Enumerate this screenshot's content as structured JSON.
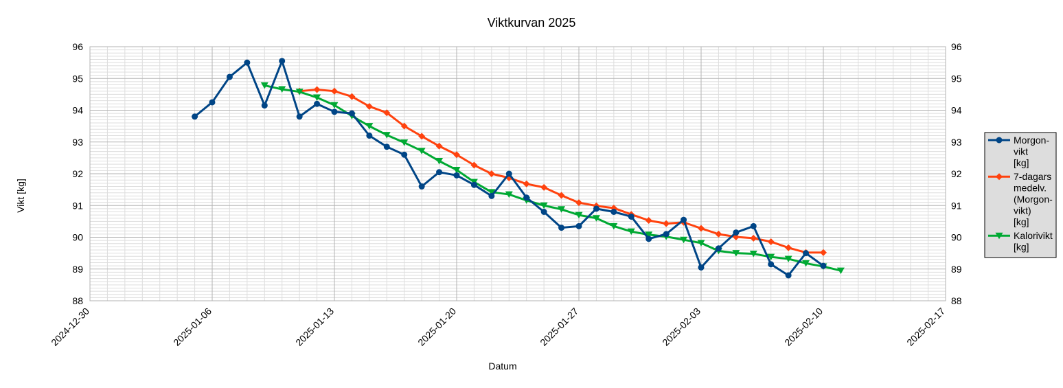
{
  "chart_data": {
    "type": "line",
    "title": "Viktkurvan 2025",
    "xlabel": "Datum",
    "ylabel": "Vikt [kg]",
    "xlim": [
      "2024-12-30",
      "2025-02-17"
    ],
    "ylim": [
      88,
      96
    ],
    "x_ticks": [
      "2024-12-30",
      "2025-01-06",
      "2025-01-13",
      "2025-01-20",
      "2025-01-27",
      "2025-02-03",
      "2025-02-10",
      "2025-02-17"
    ],
    "y_ticks": [
      88,
      89,
      90,
      91,
      92,
      93,
      94,
      95,
      96
    ],
    "grid": true,
    "secondary_y_axis": true,
    "legend": "right",
    "series": [
      {
        "name": "Morgon-vikt [kg]",
        "legend_lines": [
          "Morgon-",
          "vikt",
          "[kg]"
        ],
        "color": "#004586",
        "marker": "circle",
        "points": [
          [
            "2025-01-05",
            93.8
          ],
          [
            "2025-01-06",
            94.25
          ],
          [
            "2025-01-07",
            95.05
          ],
          [
            "2025-01-08",
            95.5
          ],
          [
            "2025-01-09",
            94.15
          ],
          [
            "2025-01-10",
            95.55
          ],
          [
            "2025-01-11",
            93.8
          ],
          [
            "2025-01-12",
            94.2
          ],
          [
            "2025-01-13",
            93.95
          ],
          [
            "2025-01-14",
            93.9
          ],
          [
            "2025-01-15",
            93.2
          ],
          [
            "2025-01-16",
            92.85
          ],
          [
            "2025-01-17",
            92.6
          ],
          [
            "2025-01-18",
            91.6
          ],
          [
            "2025-01-19",
            92.05
          ],
          [
            "2025-01-20",
            91.95
          ],
          [
            "2025-01-21",
            91.65
          ],
          [
            "2025-01-22",
            91.3
          ],
          [
            "2025-01-23",
            92.0
          ],
          [
            "2025-01-24",
            91.25
          ],
          [
            "2025-01-25",
            90.8
          ],
          [
            "2025-01-26",
            90.3
          ],
          [
            "2025-01-27",
            90.35
          ],
          [
            "2025-01-28",
            90.9
          ],
          [
            "2025-01-29",
            90.8
          ],
          [
            "2025-01-30",
            90.65
          ],
          [
            "2025-01-31",
            89.95
          ],
          [
            "2025-02-01",
            90.1
          ],
          [
            "2025-02-02",
            90.55
          ],
          [
            "2025-02-03",
            89.05
          ],
          [
            "2025-02-04",
            89.65
          ],
          [
            "2025-02-05",
            90.15
          ],
          [
            "2025-02-06",
            90.35
          ],
          [
            "2025-02-07",
            89.15
          ],
          [
            "2025-02-08",
            88.8
          ],
          [
            "2025-02-09",
            89.5
          ],
          [
            "2025-02-10",
            89.1
          ]
        ]
      },
      {
        "name": "7-dagars medelv. (Morgon-vikt) [kg]",
        "legend_lines": [
          "7-dagars",
          "medelv.",
          "(Morgon-",
          "vikt)",
          "[kg]"
        ],
        "color": "#ff420e",
        "marker": "diamond",
        "points": [
          [
            "2025-01-11",
            94.6
          ],
          [
            "2025-01-12",
            94.65
          ],
          [
            "2025-01-13",
            94.6
          ],
          [
            "2025-01-14",
            94.43
          ],
          [
            "2025-01-15",
            94.12
          ],
          [
            "2025-01-16",
            93.92
          ],
          [
            "2025-01-17",
            93.5
          ],
          [
            "2025-01-18",
            93.18
          ],
          [
            "2025-01-19",
            92.87
          ],
          [
            "2025-01-20",
            92.6
          ],
          [
            "2025-01-21",
            92.27
          ],
          [
            "2025-01-22",
            92.0
          ],
          [
            "2025-01-23",
            91.87
          ],
          [
            "2025-01-24",
            91.68
          ],
          [
            "2025-01-25",
            91.57
          ],
          [
            "2025-01-26",
            91.32
          ],
          [
            "2025-01-27",
            91.09
          ],
          [
            "2025-01-28",
            90.99
          ],
          [
            "2025-01-29",
            90.92
          ],
          [
            "2025-01-30",
            90.72
          ],
          [
            "2025-01-31",
            90.53
          ],
          [
            "2025-02-01",
            90.43
          ],
          [
            "2025-02-02",
            90.47
          ],
          [
            "2025-02-03",
            90.28
          ],
          [
            "2025-02-04",
            90.1
          ],
          [
            "2025-02-05",
            90.01
          ],
          [
            "2025-02-06",
            89.97
          ],
          [
            "2025-02-07",
            89.86
          ],
          [
            "2025-02-08",
            89.67
          ],
          [
            "2025-02-09",
            89.52
          ],
          [
            "2025-02-10",
            89.52
          ]
        ]
      },
      {
        "name": "Kalorivikt [kg]",
        "legend_lines": [
          "Kalorivikt",
          "[kg]"
        ],
        "color": "#00a933",
        "marker": "triangle-down",
        "points": [
          [
            "2025-01-09",
            94.78
          ],
          [
            "2025-01-10",
            94.66
          ],
          [
            "2025-01-11",
            94.58
          ],
          [
            "2025-01-12",
            94.4
          ],
          [
            "2025-01-13",
            94.16
          ],
          [
            "2025-01-14",
            93.82
          ],
          [
            "2025-01-15",
            93.5
          ],
          [
            "2025-01-16",
            93.22
          ],
          [
            "2025-01-17",
            92.98
          ],
          [
            "2025-01-18",
            92.72
          ],
          [
            "2025-01-19",
            92.4
          ],
          [
            "2025-01-20",
            92.12
          ],
          [
            "2025-01-21",
            91.74
          ],
          [
            "2025-01-22",
            91.42
          ],
          [
            "2025-01-23",
            91.35
          ],
          [
            "2025-01-24",
            91.16
          ],
          [
            "2025-01-25",
            91.0
          ],
          [
            "2025-01-26",
            90.88
          ],
          [
            "2025-01-27",
            90.7
          ],
          [
            "2025-01-28",
            90.6
          ],
          [
            "2025-01-29",
            90.35
          ],
          [
            "2025-01-30",
            90.18
          ],
          [
            "2025-01-31",
            90.08
          ],
          [
            "2025-02-01",
            90.02
          ],
          [
            "2025-02-02",
            89.92
          ],
          [
            "2025-02-03",
            89.82
          ],
          [
            "2025-02-04",
            89.57
          ],
          [
            "2025-02-05",
            89.5
          ],
          [
            "2025-02-06",
            89.48
          ],
          [
            "2025-02-07",
            89.38
          ],
          [
            "2025-02-08",
            89.32
          ],
          [
            "2025-02-09",
            89.18
          ],
          [
            "2025-02-10",
            89.08
          ],
          [
            "2025-02-11",
            88.95
          ]
        ]
      }
    ]
  }
}
